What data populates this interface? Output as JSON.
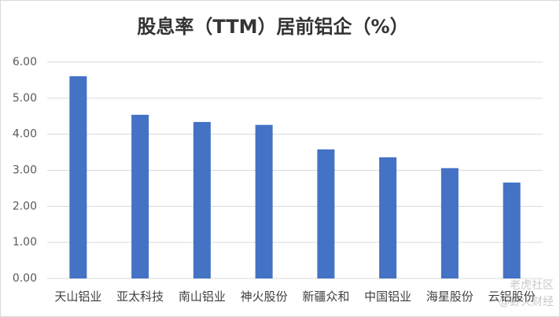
{
  "chart_data": {
    "type": "bar",
    "title": "股息率（TTM）居前铝企（%）",
    "categories": [
      "天山铝业",
      "亚太科技",
      "南山铝业",
      "神火股份",
      "新疆众和",
      "中国铝业",
      "海星股份",
      "云铝股份"
    ],
    "values": [
      5.61,
      4.54,
      4.34,
      4.26,
      3.58,
      3.36,
      3.06,
      2.66
    ],
    "color": "#4472c4",
    "ylim": [
      0,
      6
    ],
    "yticks": [
      {
        "value": 0,
        "label": "0.00"
      },
      {
        "value": 1,
        "label": "1.00"
      },
      {
        "value": 2,
        "label": "2.00"
      },
      {
        "value": 3,
        "label": "3.00"
      },
      {
        "value": 4,
        "label": "4.00"
      },
      {
        "value": 5,
        "label": "5.00"
      },
      {
        "value": 6,
        "label": "6.00"
      }
    ],
    "grid": true
  },
  "watermark": [
    "老虎社区",
    "@野火财经"
  ]
}
